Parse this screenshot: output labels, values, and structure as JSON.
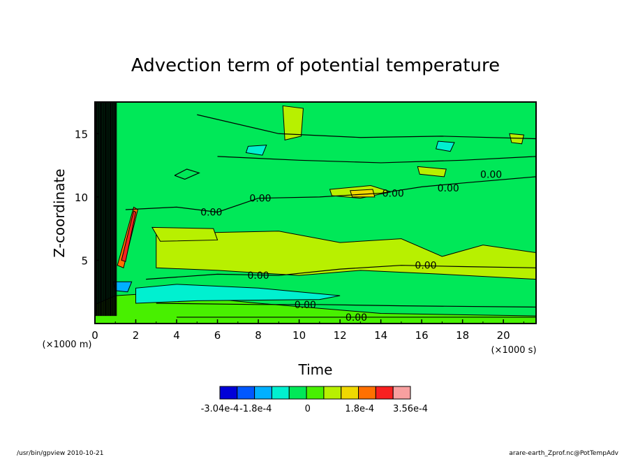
{
  "chart_data": {
    "type": "heatmap",
    "title": "Advection term of potential temperature",
    "xlabel": "Time",
    "ylabel": "Z-coordinate",
    "x_unit": "(×1000 s)",
    "y_unit": "(×1000 m)",
    "xlim": [
      0,
      21.6
    ],
    "ylim": [
      0,
      17.5
    ],
    "x_ticks": [
      0,
      2,
      4,
      6,
      8,
      10,
      12,
      14,
      16,
      18,
      20
    ],
    "y_ticks": [
      5,
      10,
      15
    ],
    "contour_labels": [
      {
        "text": "0.00",
        "x": 8.0,
        "y": 3.8
      },
      {
        "text": "0.00",
        "x": 10.3,
        "y": 1.5
      },
      {
        "text": "0.00",
        "x": 12.8,
        "y": 0.5
      },
      {
        "text": "0.00",
        "x": 5.7,
        "y": 8.8
      },
      {
        "text": "0.00",
        "x": 8.1,
        "y": 9.9
      },
      {
        "text": "0.00",
        "x": 14.6,
        "y": 10.3
      },
      {
        "text": "0.00",
        "x": 17.3,
        "y": 10.7
      },
      {
        "text": "0.00",
        "x": 19.4,
        "y": 11.8
      },
      {
        "text": "0.00",
        "x": 16.2,
        "y": 4.6
      }
    ],
    "colorbar": {
      "colors": [
        "#0000d8",
        "#0058ff",
        "#00b0ff",
        "#00f0d0",
        "#00e858",
        "#48f000",
        "#b8f000",
        "#f0d800",
        "#ff7000",
        "#f82020",
        "#f8a0a0"
      ],
      "tick_labels": [
        "-3.04e-4",
        "-1.8e-4",
        "0",
        "1.8e-4",
        "3.56e-4"
      ],
      "range": [
        -0.000304,
        0.000356
      ]
    },
    "grid": false,
    "legend": "colorbar bottom"
  },
  "footer": {
    "left": "/usr/bin/gpview   2010-10-21",
    "right": "arare-earth_Zprof.nc@PotTempAdv"
  }
}
